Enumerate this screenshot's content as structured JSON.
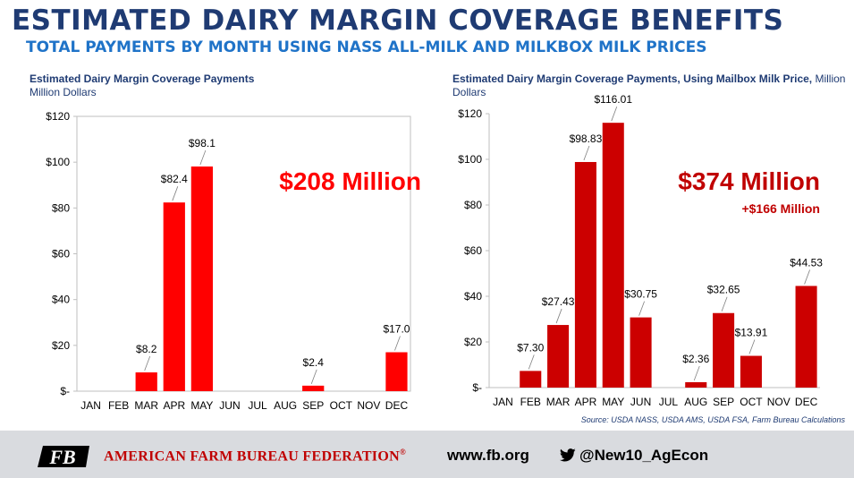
{
  "header": {
    "title": "ESTIMATED DAIRY MARGIN COVERAGE BENEFITS",
    "subtitle": "TOTAL PAYMENTS BY MONTH USING NASS ALL-MILK AND MILKBOX MILK PRICES"
  },
  "left_chart": {
    "title_bold": "Estimated Dairy Margin Coverage Payments",
    "title_normal": "Million Dollars",
    "total_callout": "$208 Million"
  },
  "right_chart": {
    "title_bold": "Estimated Dairy Margin Coverage Payments, Using Mailbox Milk Price,",
    "title_normal": " Million Dollars",
    "total_callout": "$374 Million",
    "difference_callout": "+$166 Million",
    "source": "Source: USDA NASS, USDA AMS, USDA FSA, Farm Bureau Calculations"
  },
  "chart_data": [
    {
      "type": "bar",
      "title": "Estimated Dairy Margin Coverage Payments",
      "ylabel": "Million Dollars",
      "categories": [
        "JAN",
        "FEB",
        "MAR",
        "APR",
        "MAY",
        "JUN",
        "JUL",
        "AUG",
        "SEP",
        "OCT",
        "NOV",
        "DEC"
      ],
      "values": [
        0,
        0,
        8.2,
        82.4,
        98.1,
        0,
        0,
        0,
        2.4,
        0,
        0,
        17.0
      ],
      "data_labels": [
        "",
        "",
        "$8.2",
        "$82.4",
        "$98.1",
        "",
        "",
        "",
        "$2.4",
        "",
        "",
        "$17.0"
      ],
      "ylim": [
        0,
        120
      ],
      "yticks": [
        0,
        20,
        40,
        60,
        80,
        100,
        120
      ],
      "ytick_labels": [
        "$-",
        "$20",
        "$40",
        "$60",
        "$80",
        "$100",
        "$120"
      ],
      "bar_color": "#ff0000",
      "grid": false
    },
    {
      "type": "bar",
      "title": "Estimated Dairy Margin Coverage Payments, Using Mailbox Milk Price",
      "ylabel": "Million Dollars",
      "categories": [
        "JAN",
        "FEB",
        "MAR",
        "APR",
        "MAY",
        "JUN",
        "JUL",
        "AUG",
        "SEP",
        "OCT",
        "NOV",
        "DEC"
      ],
      "values": [
        0,
        7.3,
        27.43,
        98.83,
        116.01,
        30.75,
        0,
        2.36,
        32.65,
        13.91,
        0,
        44.53
      ],
      "data_labels": [
        "",
        "$7.30",
        "$27.43",
        "$98.83",
        "$116.01",
        "$30.75",
        "",
        "$2.36",
        "$32.65",
        "$13.91",
        "",
        "$44.53"
      ],
      "ylim": [
        0,
        120
      ],
      "yticks": [
        0,
        20,
        40,
        60,
        80,
        100,
        120
      ],
      "ytick_labels": [
        "$-",
        "$20",
        "$40",
        "$60",
        "$80",
        "$100",
        "$120"
      ],
      "bar_color": "#cc0000",
      "grid": false
    }
  ],
  "footer": {
    "logo": "FB",
    "org_name": "AMERICAN FARM BUREAU FEDERATION",
    "org_mark": "®",
    "website": "www.fb.org",
    "twitter_handle": "@New10_AgEcon",
    "twitter_icon": "twitter-bird-icon"
  }
}
